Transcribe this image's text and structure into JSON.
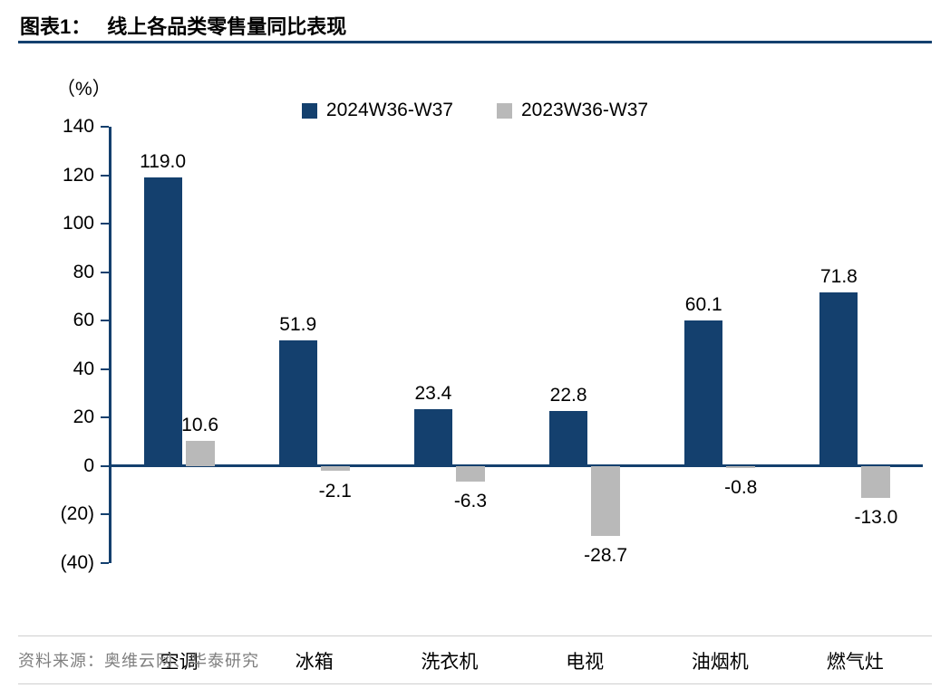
{
  "header": {
    "prefix": "图表1：",
    "title": "线上各品类零售量同比表现"
  },
  "chart_data": {
    "type": "bar",
    "title": "线上各品类零售量同比表现",
    "unit_label": "（%）",
    "categories": [
      "空调",
      "冰箱",
      "洗衣机",
      "电视",
      "油烟机",
      "燃气灶"
    ],
    "series": [
      {
        "name": "2024W36-W37",
        "color": "#14406e",
        "values": [
          119.0,
          51.9,
          23.4,
          22.8,
          60.1,
          71.8
        ]
      },
      {
        "name": "2023W36-W37",
        "color": "#b9b9b9",
        "values": [
          10.6,
          -2.1,
          -6.3,
          -28.7,
          -0.8,
          -13.0
        ]
      }
    ],
    "y_ticks": [
      {
        "label": "140",
        "value": 140
      },
      {
        "label": "120",
        "value": 120
      },
      {
        "label": "100",
        "value": 100
      },
      {
        "label": "80",
        "value": 80
      },
      {
        "label": "60",
        "value": 60
      },
      {
        "label": "40",
        "value": 40
      },
      {
        "label": "20",
        "value": 20
      },
      {
        "label": "0",
        "value": 0
      },
      {
        "label": "(20)",
        "value": -20
      },
      {
        "label": "(40)",
        "value": -40
      }
    ],
    "ylim": [
      -40,
      140
    ],
    "xlabel": "",
    "ylabel": "（%）",
    "grid": false,
    "legend_position": "top",
    "axis_color": "#14406e",
    "label_color": "#000000"
  },
  "footer": {
    "source": "资料来源：奥维云网、华泰研究"
  }
}
